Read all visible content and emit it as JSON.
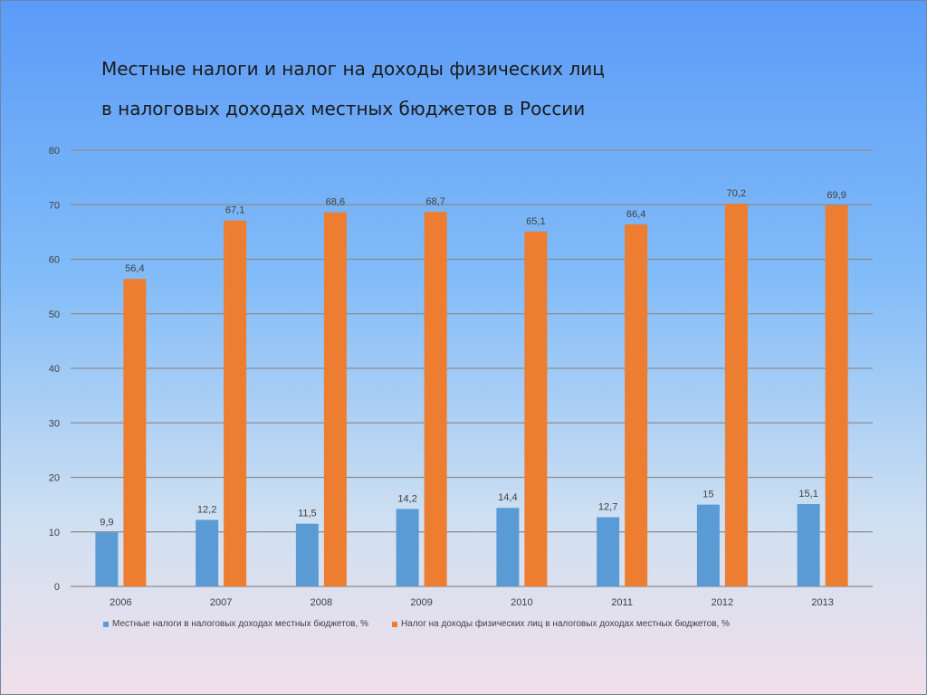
{
  "title": {
    "line1": "Местные налоги и налог на доходы физических лиц",
    "line2": "в налоговых доходах местных бюджетов в России"
  },
  "colors": {
    "series1": "#5b9bd5",
    "series2": "#ed7d31",
    "grid": "#8c8c8c",
    "text": "#404040"
  },
  "chart_data": {
    "type": "bar",
    "categories": [
      "2006",
      "2007",
      "2008",
      "2009",
      "2010",
      "2011",
      "2012",
      "2013"
    ],
    "series": [
      {
        "name": "Местные налоги в налоговых доходах местных бюджетов, %",
        "values": [
          9.9,
          12.2,
          11.5,
          14.2,
          14.4,
          12.7,
          15,
          15.1
        ],
        "labels": [
          "9,9",
          "12,2",
          "11,5",
          "14,2",
          "14,4",
          "12,7",
          "15",
          "15,1"
        ]
      },
      {
        "name": "Налог на доходы физических лиц в налоговых доходах местных бюджетов, %",
        "values": [
          56.4,
          67.1,
          68.6,
          68.7,
          65.1,
          66.4,
          70.2,
          69.9
        ],
        "labels": [
          "56,4",
          "67,1",
          "68,6",
          "68,7",
          "65,1",
          "66,4",
          "70,2",
          "69,9"
        ]
      }
    ],
    "ylim": [
      0,
      80
    ],
    "yticks": [
      0,
      10,
      20,
      30,
      40,
      50,
      60,
      70,
      80
    ],
    "grid": true,
    "legend_position": "bottom"
  }
}
